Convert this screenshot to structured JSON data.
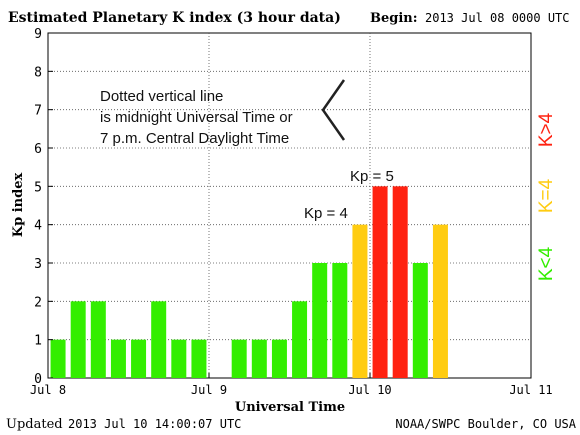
{
  "header": {
    "title": "Estimated Planetary K index (3 hour data)",
    "begin_label": "Begin:",
    "begin_value": "2013 Jul 08 0000 UTC"
  },
  "footer": {
    "updated_label": "Updated",
    "updated_value": "2013 Jul 10 14:00:07 UTC",
    "source": "NOAA/SWPC Boulder, CO USA"
  },
  "annotations": {
    "midnight_note": [
      "Dotted vertical line",
      "is midnight Universal Time or",
      "7 p.m. Central Daylight Time"
    ],
    "kp4_label": "Kp = 4",
    "kp5_label": "Kp = 5"
  },
  "legend": {
    "green": "K<4",
    "yellow": "K=4",
    "red": "K>4"
  },
  "colors": {
    "green": "#33ee00",
    "yellow": "#ffcc11",
    "red": "#ff2211"
  },
  "chart_data": {
    "type": "bar",
    "title": "Estimated Planetary K index (3 hour data)",
    "xlabel": "Universal Time",
    "ylabel": "Kp index",
    "ylim": [
      0,
      9
    ],
    "yticks": [
      "0",
      "1",
      "2",
      "3",
      "4",
      "5",
      "6",
      "7",
      "8",
      "9"
    ],
    "xticks": [
      "Jul 8",
      "Jul 9",
      "Jul 10",
      "Jul 11"
    ],
    "interval_hours": 3,
    "days_shown": 3,
    "values": [
      1,
      2,
      2,
      1,
      1,
      2,
      1,
      1,
      null,
      1,
      1,
      1,
      2,
      3,
      3,
      4,
      5,
      5,
      3,
      4
    ],
    "grid": "dotted"
  }
}
